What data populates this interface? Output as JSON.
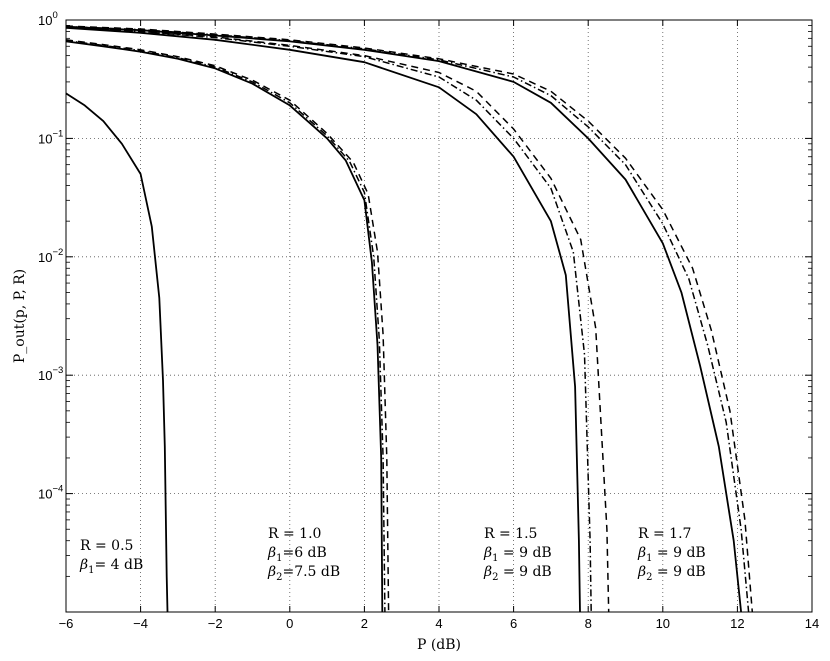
{
  "chart_data": {
    "type": "line",
    "title": "",
    "xlabel": "P (dB)",
    "ylabel": "P_out(p, P, R)",
    "xlim": [
      -6,
      14
    ],
    "ylim": [
      1e-05,
      1
    ],
    "yscale": "log",
    "x_ticks": [
      "−6",
      "−4",
      "−2",
      "0",
      "2",
      "4",
      "6",
      "8",
      "10",
      "12",
      "14"
    ],
    "y_ticks": [
      {
        "base": "10",
        "exp": "0"
      },
      {
        "base": "10",
        "exp": "−1"
      },
      {
        "base": "10",
        "exp": "−2"
      },
      {
        "base": "10",
        "exp": "−3"
      },
      {
        "base": "10",
        "exp": "−4"
      }
    ],
    "grid": true,
    "series": [
      {
        "group": "R=0.5",
        "style": "solid",
        "points": [
          [
            -6,
            0.24
          ],
          [
            -5.5,
            0.19
          ],
          [
            -5,
            0.14
          ],
          [
            -4.5,
            0.09
          ],
          [
            -4,
            0.05
          ],
          [
            -3.7,
            0.018
          ],
          [
            -3.5,
            0.0045
          ],
          [
            -3.4,
            0.0009
          ],
          [
            -3.35,
            0.00025
          ],
          [
            -3.3,
            2e-05
          ],
          [
            -3.28,
            1e-05
          ]
        ]
      },
      {
        "group": "R=1.0",
        "style": "solid",
        "points": [
          [
            -6,
            0.66
          ],
          [
            -5,
            0.6
          ],
          [
            -4,
            0.54
          ],
          [
            -3,
            0.47
          ],
          [
            -2,
            0.39
          ],
          [
            -1,
            0.29
          ],
          [
            0,
            0.19
          ],
          [
            1,
            0.1
          ],
          [
            1.5,
            0.065
          ],
          [
            2,
            0.03
          ],
          [
            2.2,
            0.009
          ],
          [
            2.35,
            0.0018
          ],
          [
            2.45,
            0.0002
          ],
          [
            2.48,
            1e-05
          ]
        ]
      },
      {
        "group": "R=1.0",
        "style": "dashdot",
        "points": [
          [
            -6,
            0.67
          ],
          [
            -5,
            0.61
          ],
          [
            -4,
            0.55
          ],
          [
            -3,
            0.48
          ],
          [
            -2,
            0.4
          ],
          [
            -1,
            0.3
          ],
          [
            0,
            0.2
          ],
          [
            1,
            0.105
          ],
          [
            1.6,
            0.064
          ],
          [
            2,
            0.035
          ],
          [
            2.25,
            0.01
          ],
          [
            2.4,
            0.002
          ],
          [
            2.5,
            0.0002
          ],
          [
            2.55,
            1e-05
          ]
        ]
      },
      {
        "group": "R=1.0",
        "style": "dashed",
        "points": [
          [
            -6,
            0.68
          ],
          [
            -5,
            0.62
          ],
          [
            -4,
            0.56
          ],
          [
            -3,
            0.49
          ],
          [
            -2,
            0.41
          ],
          [
            -1,
            0.31
          ],
          [
            0,
            0.21
          ],
          [
            1,
            0.11
          ],
          [
            1.7,
            0.063
          ],
          [
            2.1,
            0.034
          ],
          [
            2.35,
            0.011
          ],
          [
            2.5,
            0.0022
          ],
          [
            2.6,
            0.0002
          ],
          [
            2.65,
            1e-05
          ]
        ]
      },
      {
        "group": "R=1.5",
        "style": "solid",
        "points": [
          [
            -6,
            0.86
          ],
          [
            -4,
            0.78
          ],
          [
            -2,
            0.68
          ],
          [
            0,
            0.56
          ],
          [
            2,
            0.44
          ],
          [
            4,
            0.27
          ],
          [
            5,
            0.16
          ],
          [
            6,
            0.07
          ],
          [
            7,
            0.02
          ],
          [
            7.4,
            0.007
          ],
          [
            7.65,
            0.0008
          ],
          [
            7.75,
            4e-05
          ],
          [
            7.78,
            1e-05
          ]
        ]
      },
      {
        "group": "R=1.5",
        "style": "dashdot",
        "points": [
          [
            -6,
            0.87
          ],
          [
            -4,
            0.8
          ],
          [
            -2,
            0.71
          ],
          [
            0,
            0.6
          ],
          [
            2,
            0.49
          ],
          [
            4,
            0.33
          ],
          [
            5,
            0.21
          ],
          [
            6,
            0.1
          ],
          [
            7,
            0.038
          ],
          [
            7.6,
            0.011
          ],
          [
            7.9,
            0.0015
          ],
          [
            8.05,
            4e-05
          ],
          [
            8.08,
            1e-05
          ]
        ]
      },
      {
        "group": "R=1.5",
        "style": "dashed",
        "points": [
          [
            -6,
            0.87
          ],
          [
            -4,
            0.8
          ],
          [
            -2,
            0.72
          ],
          [
            0,
            0.61
          ],
          [
            2,
            0.5
          ],
          [
            4,
            0.36
          ],
          [
            5,
            0.25
          ],
          [
            6,
            0.12
          ],
          [
            7,
            0.046
          ],
          [
            7.8,
            0.014
          ],
          [
            8.2,
            0.0025
          ],
          [
            8.5,
            5e-05
          ],
          [
            8.55,
            1e-05
          ]
        ]
      },
      {
        "group": "R=1.7",
        "style": "solid",
        "points": [
          [
            -6,
            0.88
          ],
          [
            -4,
            0.82
          ],
          [
            -2,
            0.74
          ],
          [
            0,
            0.66
          ],
          [
            2,
            0.56
          ],
          [
            4,
            0.45
          ],
          [
            6,
            0.3
          ],
          [
            7,
            0.2
          ],
          [
            8,
            0.1
          ],
          [
            9,
            0.045
          ],
          [
            10,
            0.013
          ],
          [
            10.5,
            0.005
          ],
          [
            11,
            0.0012
          ],
          [
            11.5,
            0.00025
          ],
          [
            11.9,
            4e-05
          ],
          [
            12.1,
            1e-05
          ]
        ]
      },
      {
        "group": "R=1.7",
        "style": "dashdot",
        "points": [
          [
            -6,
            0.88
          ],
          [
            -4,
            0.83
          ],
          [
            -2,
            0.75
          ],
          [
            0,
            0.67
          ],
          [
            2,
            0.57
          ],
          [
            4,
            0.46
          ],
          [
            6,
            0.33
          ],
          [
            7,
            0.23
          ],
          [
            8,
            0.125
          ],
          [
            9,
            0.06
          ],
          [
            10,
            0.019
          ],
          [
            10.7,
            0.0065
          ],
          [
            11.2,
            0.0018
          ],
          [
            11.7,
            0.0004
          ],
          [
            12.1,
            5e-05
          ],
          [
            12.3,
            1e-05
          ]
        ]
      },
      {
        "group": "R=1.7",
        "style": "dashed",
        "points": [
          [
            -6,
            0.89
          ],
          [
            -4,
            0.84
          ],
          [
            -2,
            0.76
          ],
          [
            0,
            0.68
          ],
          [
            2,
            0.58
          ],
          [
            4,
            0.47
          ],
          [
            6,
            0.35
          ],
          [
            7,
            0.25
          ],
          [
            8,
            0.14
          ],
          [
            9,
            0.068
          ],
          [
            10,
            0.025
          ],
          [
            10.8,
            0.008
          ],
          [
            11.3,
            0.0024
          ],
          [
            11.8,
            0.0005
          ],
          [
            12.2,
            6e-05
          ],
          [
            12.4,
            1e-05
          ]
        ]
      }
    ],
    "annotations": [
      {
        "lines": [
          "R = 0.5",
          "β1= 4 dB"
        ]
      },
      {
        "lines": [
          "R = 1.0",
          "β1=6 dB",
          "β2=7.5 dB"
        ]
      },
      {
        "lines": [
          "R = 1.5",
          "β1 = 9 dB",
          "β2 = 9 dB"
        ]
      },
      {
        "lines": [
          "R = 1.7",
          "β1 = 9 dB",
          "β2 = 9 dB"
        ]
      }
    ]
  }
}
